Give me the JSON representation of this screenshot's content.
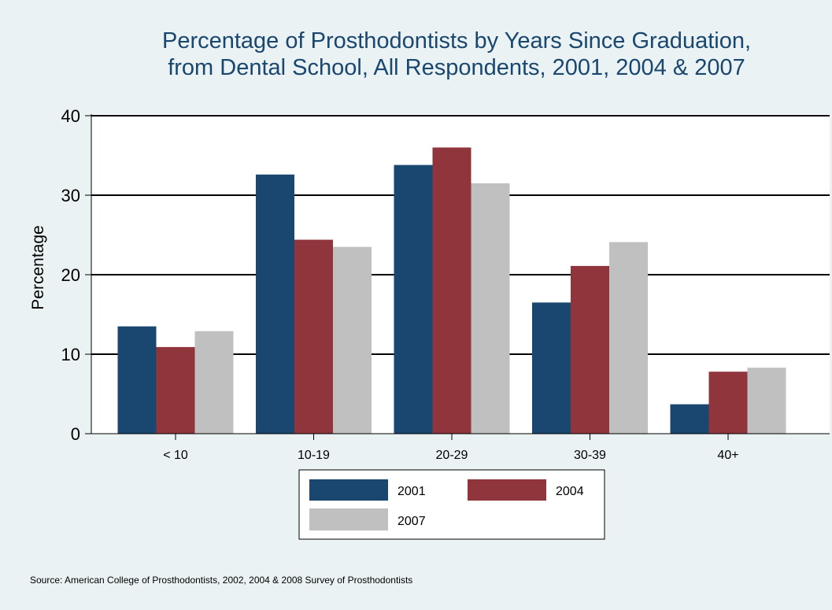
{
  "chart_data": {
    "type": "bar",
    "title": [
      "Percentage of Prosthodontists by Years Since Graduation,",
      "from Dental School, All Respondents, 2001, 2004 & 2007"
    ],
    "ylabel": "Percentage",
    "xlabel": "",
    "ylim": [
      0,
      40
    ],
    "yticks": [
      0,
      10,
      20,
      30,
      40
    ],
    "grid": true,
    "categories": [
      "< 10",
      "10-19",
      "20-29",
      "30-39",
      "40+"
    ],
    "series": [
      {
        "name": "2001",
        "color": "#1a476f",
        "values": [
          13.5,
          32.6,
          33.8,
          16.5,
          3.7
        ]
      },
      {
        "name": "2004",
        "color": "#90353b",
        "values": [
          10.9,
          24.4,
          36.0,
          21.1,
          7.8
        ]
      },
      {
        "name": "2007",
        "color": "#c0c0c0",
        "values": [
          12.9,
          23.5,
          31.5,
          24.1,
          8.3
        ]
      }
    ],
    "legend_position": "bottom",
    "note": "Source: American College of Prosthodontists, 2002, 2004 & 2008 Survey of Prosthodontists"
  }
}
